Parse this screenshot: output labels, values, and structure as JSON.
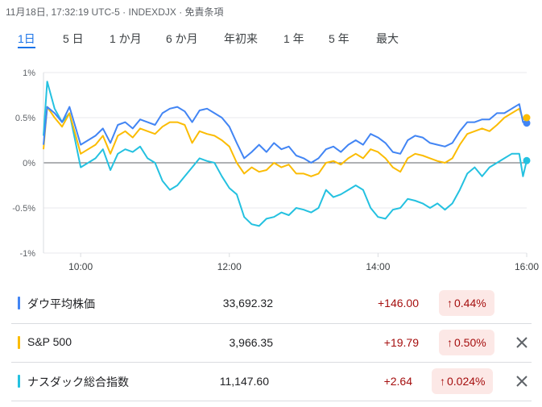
{
  "header": {
    "timestamp": "11月18日, 17:32:19 UTC-5 · INDEXDJX · 免責条項"
  },
  "tabs": [
    {
      "label": "1日",
      "active": true
    },
    {
      "label": "5 日",
      "active": false
    },
    {
      "label": "1 か月",
      "active": false
    },
    {
      "label": "6 か月",
      "active": false
    },
    {
      "label": "年初来",
      "active": false
    },
    {
      "label": "1 年",
      "active": false
    },
    {
      "label": "5 年",
      "active": false
    },
    {
      "label": "最大",
      "active": false
    }
  ],
  "chart_data": {
    "type": "line",
    "x_label_ticks": [
      "10:00",
      "12:00",
      "14:00",
      "16:00"
    ],
    "y_tick_labels": [
      "1%",
      "0.5%",
      "0%",
      "-0.5%",
      "-1%"
    ],
    "ylim": [
      -1,
      1
    ],
    "x_unit": "hours",
    "xlim": [
      9.5,
      16.0
    ],
    "series": [
      {
        "name": "ダウ平均株価",
        "color": "#4285f4",
        "end_value": 0.44,
        "x": [
          9.5,
          9.55,
          9.65,
          9.75,
          9.85,
          10.0,
          10.1,
          10.2,
          10.3,
          10.4,
          10.5,
          10.6,
          10.7,
          10.8,
          10.9,
          11.0,
          11.1,
          11.2,
          11.3,
          11.4,
          11.5,
          11.6,
          11.7,
          11.8,
          11.9,
          12.0,
          12.1,
          12.2,
          12.3,
          12.4,
          12.5,
          12.6,
          12.7,
          12.8,
          12.9,
          13.0,
          13.1,
          13.2,
          13.3,
          13.4,
          13.5,
          13.6,
          13.7,
          13.8,
          13.9,
          14.0,
          14.1,
          14.2,
          14.3,
          14.4,
          14.5,
          14.6,
          14.7,
          14.8,
          14.9,
          15.0,
          15.1,
          15.2,
          15.3,
          15.4,
          15.5,
          15.6,
          15.7,
          15.8,
          15.9,
          15.95,
          16.0
        ],
        "y": [
          0.2,
          0.62,
          0.55,
          0.45,
          0.62,
          0.2,
          0.25,
          0.3,
          0.38,
          0.22,
          0.42,
          0.45,
          0.38,
          0.48,
          0.45,
          0.42,
          0.55,
          0.6,
          0.62,
          0.57,
          0.45,
          0.58,
          0.6,
          0.55,
          0.5,
          0.4,
          0.22,
          0.05,
          0.12,
          0.2,
          0.12,
          0.22,
          0.15,
          0.18,
          0.08,
          0.05,
          0.0,
          0.05,
          0.15,
          0.18,
          0.12,
          0.2,
          0.25,
          0.2,
          0.32,
          0.28,
          0.22,
          0.12,
          0.1,
          0.25,
          0.3,
          0.28,
          0.22,
          0.2,
          0.18,
          0.22,
          0.35,
          0.45,
          0.45,
          0.48,
          0.48,
          0.55,
          0.55,
          0.6,
          0.65,
          0.45,
          0.44
        ]
      },
      {
        "name": "S&P 500",
        "color": "#fbbc04",
        "end_value": 0.5,
        "x": [
          9.5,
          9.55,
          9.65,
          9.75,
          9.85,
          10.0,
          10.1,
          10.2,
          10.3,
          10.4,
          10.5,
          10.6,
          10.7,
          10.8,
          10.9,
          11.0,
          11.1,
          11.2,
          11.3,
          11.4,
          11.5,
          11.6,
          11.7,
          11.8,
          11.9,
          12.0,
          12.1,
          12.2,
          12.3,
          12.4,
          12.5,
          12.6,
          12.7,
          12.8,
          12.9,
          13.0,
          13.1,
          13.2,
          13.3,
          13.4,
          13.5,
          13.6,
          13.7,
          13.8,
          13.9,
          14.0,
          14.1,
          14.2,
          14.3,
          14.4,
          14.5,
          14.6,
          14.7,
          14.8,
          14.9,
          15.0,
          15.1,
          15.2,
          15.3,
          15.4,
          15.5,
          15.6,
          15.7,
          15.8,
          15.9,
          15.95,
          16.0
        ],
        "y": [
          0.15,
          0.62,
          0.5,
          0.4,
          0.55,
          0.1,
          0.15,
          0.2,
          0.3,
          0.1,
          0.3,
          0.35,
          0.28,
          0.38,
          0.35,
          0.32,
          0.4,
          0.45,
          0.45,
          0.42,
          0.22,
          0.35,
          0.32,
          0.3,
          0.25,
          0.18,
          0.0,
          -0.12,
          -0.05,
          -0.1,
          -0.08,
          0.0,
          -0.05,
          -0.02,
          -0.12,
          -0.12,
          -0.15,
          -0.12,
          0.0,
          0.02,
          -0.02,
          0.05,
          0.1,
          0.05,
          0.15,
          0.12,
          0.05,
          -0.05,
          -0.1,
          0.05,
          0.1,
          0.08,
          0.05,
          0.02,
          0.0,
          0.05,
          0.2,
          0.32,
          0.35,
          0.38,
          0.35,
          0.42,
          0.5,
          0.55,
          0.6,
          0.48,
          0.5
        ]
      },
      {
        "name": "ナスダック総合指数",
        "color": "#24c1e0",
        "end_value": 0.024,
        "x": [
          9.5,
          9.55,
          9.65,
          9.75,
          9.85,
          10.0,
          10.1,
          10.2,
          10.3,
          10.4,
          10.5,
          10.6,
          10.7,
          10.8,
          10.9,
          11.0,
          11.1,
          11.2,
          11.3,
          11.4,
          11.5,
          11.6,
          11.7,
          11.8,
          11.9,
          12.0,
          12.1,
          12.2,
          12.3,
          12.4,
          12.5,
          12.6,
          12.7,
          12.8,
          12.9,
          13.0,
          13.1,
          13.2,
          13.3,
          13.4,
          13.5,
          13.6,
          13.7,
          13.8,
          13.9,
          14.0,
          14.1,
          14.2,
          14.3,
          14.4,
          14.5,
          14.6,
          14.7,
          14.8,
          14.9,
          15.0,
          15.1,
          15.2,
          15.3,
          15.4,
          15.5,
          15.6,
          15.7,
          15.8,
          15.9,
          15.95,
          16.0
        ],
        "y": [
          0.3,
          0.9,
          0.6,
          0.45,
          0.55,
          -0.05,
          0.0,
          0.05,
          0.15,
          -0.08,
          0.1,
          0.15,
          0.12,
          0.18,
          0.05,
          0.0,
          -0.2,
          -0.3,
          -0.25,
          -0.15,
          -0.05,
          0.05,
          0.02,
          0.0,
          -0.15,
          -0.28,
          -0.35,
          -0.6,
          -0.68,
          -0.7,
          -0.62,
          -0.6,
          -0.55,
          -0.58,
          -0.5,
          -0.52,
          -0.55,
          -0.5,
          -0.3,
          -0.38,
          -0.35,
          -0.3,
          -0.25,
          -0.3,
          -0.5,
          -0.6,
          -0.62,
          -0.52,
          -0.5,
          -0.4,
          -0.42,
          -0.45,
          -0.5,
          -0.45,
          -0.52,
          -0.45,
          -0.3,
          -0.12,
          -0.05,
          -0.15,
          -0.05,
          0.0,
          0.05,
          0.1,
          0.1,
          -0.15,
          0.024
        ]
      }
    ]
  },
  "quotes": [
    {
      "name": "ダウ平均株価",
      "price": "33,692.32",
      "change": "+146.00",
      "percent": "0.44%",
      "color": "#4285f4",
      "closable": false
    },
    {
      "name": "S&P 500",
      "price": "3,966.35",
      "change": "+19.79",
      "percent": "0.50%",
      "color": "#fbbc04",
      "closable": true
    },
    {
      "name": "ナスダック総合指数",
      "price": "11,147.60",
      "change": "+2.64",
      "percent": "0.024%",
      "color": "#24c1e0",
      "closable": true
    }
  ],
  "icons": {
    "up_arrow": "arrow-up-icon",
    "close": "close-icon"
  }
}
